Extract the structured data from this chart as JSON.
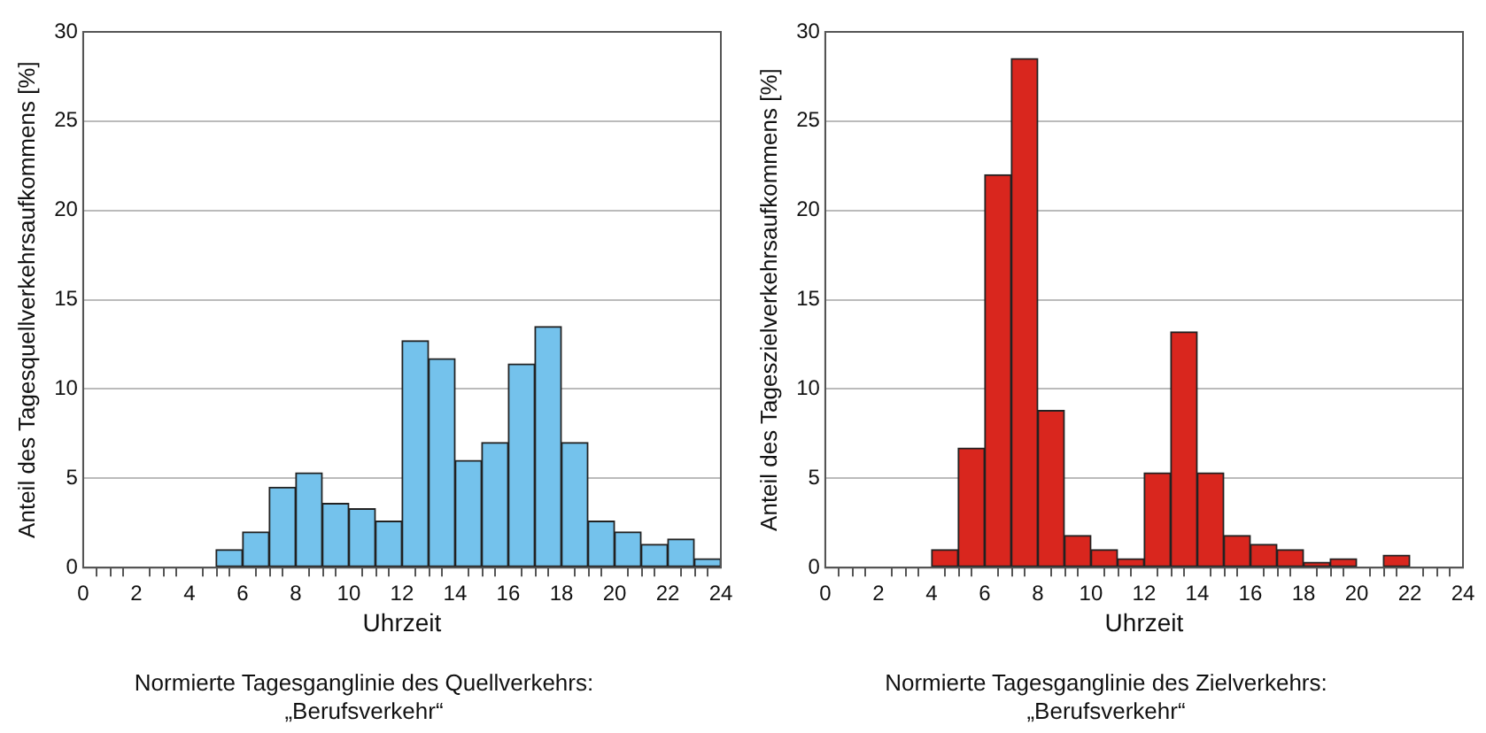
{
  "chart_data": [
    {
      "type": "histogram",
      "title": "Normierte Tagesganglinie des Quellverkehrs:\n„Berufsverkehr“",
      "xlabel": "Uhrzeit",
      "ylabel": "Anteil des Tagesquellverkehrsaufkommens [%]",
      "color": "#74c2ec",
      "bins": [
        0,
        1,
        2,
        3,
        4,
        5,
        6,
        7,
        8,
        9,
        10,
        11,
        12,
        13,
        14,
        15,
        16,
        17,
        18,
        19,
        20,
        21,
        22,
        23,
        24
      ],
      "values": [
        0,
        0,
        0,
        0,
        0,
        1.0,
        2.0,
        4.5,
        5.3,
        3.6,
        3.3,
        2.6,
        12.7,
        11.7,
        6.0,
        7.0,
        11.4,
        13.5,
        7.0,
        2.6,
        2.0,
        1.3,
        1.6,
        0.5
      ],
      "xlim": [
        0,
        24
      ],
      "xticks": [
        0,
        {
          "value": 1,
          "label": null
        },
        2,
        {
          "value": 3,
          "label": null
        },
        4,
        {
          "value": 5,
          "label": null
        },
        6,
        {
          "value": 7,
          "label": null
        },
        8,
        {
          "value": 9,
          "label": null
        },
        10,
        {
          "value": 11,
          "label": null
        },
        12,
        {
          "value": 13,
          "label": null
        },
        14,
        {
          "value": 15,
          "label": null
        },
        16,
        {
          "value": 17,
          "label": null
        },
        18,
        {
          "value": 19,
          "label": null
        },
        20,
        {
          "value": 21,
          "label": null
        },
        22,
        {
          "value": 23,
          "label": null
        },
        24
      ],
      "ylim": [
        0,
        30
      ],
      "yticks": [
        0,
        5,
        10,
        15,
        20,
        25,
        30
      ],
      "grid": "y"
    },
    {
      "type": "histogram",
      "title": "Normierte Tagesganglinie des Zielverkehrs:\n„Berufsverkehr“",
      "xlabel": "Uhrzeit",
      "ylabel": "Anteil des Tageszielverkehrsaufkommens [%]",
      "color": "#d9261e",
      "bins": [
        0,
        1,
        2,
        3,
        4,
        5,
        6,
        7,
        8,
        9,
        10,
        11,
        12,
        13,
        14,
        15,
        16,
        17,
        18,
        19,
        20,
        21,
        22,
        23,
        24
      ],
      "values": [
        0,
        0,
        0,
        0,
        1.0,
        6.7,
        22.0,
        28.5,
        8.8,
        1.8,
        1.0,
        0.5,
        5.3,
        13.2,
        5.3,
        1.8,
        1.3,
        1.0,
        0.3,
        0.5,
        0,
        0.7,
        0,
        0
      ],
      "xlim": [
        0,
        24
      ],
      "xticks": [
        0,
        {
          "value": 1,
          "label": null
        },
        2,
        {
          "value": 3,
          "label": null
        },
        4,
        {
          "value": 5,
          "label": null
        },
        6,
        {
          "value": 7,
          "label": null
        },
        8,
        {
          "value": 9,
          "label": null
        },
        10,
        {
          "value": 11,
          "label": null
        },
        12,
        {
          "value": 13,
          "label": null
        },
        14,
        {
          "value": 15,
          "label": null
        },
        16,
        {
          "value": 17,
          "label": null
        },
        18,
        {
          "value": 19,
          "label": null
        },
        20,
        {
          "value": 21,
          "label": null
        },
        22,
        {
          "value": 23,
          "label": null
        },
        24
      ],
      "ylim": [
        0,
        30
      ],
      "yticks": [
        0,
        5,
        10,
        15,
        20,
        25,
        30
      ],
      "grid": "y"
    }
  ]
}
